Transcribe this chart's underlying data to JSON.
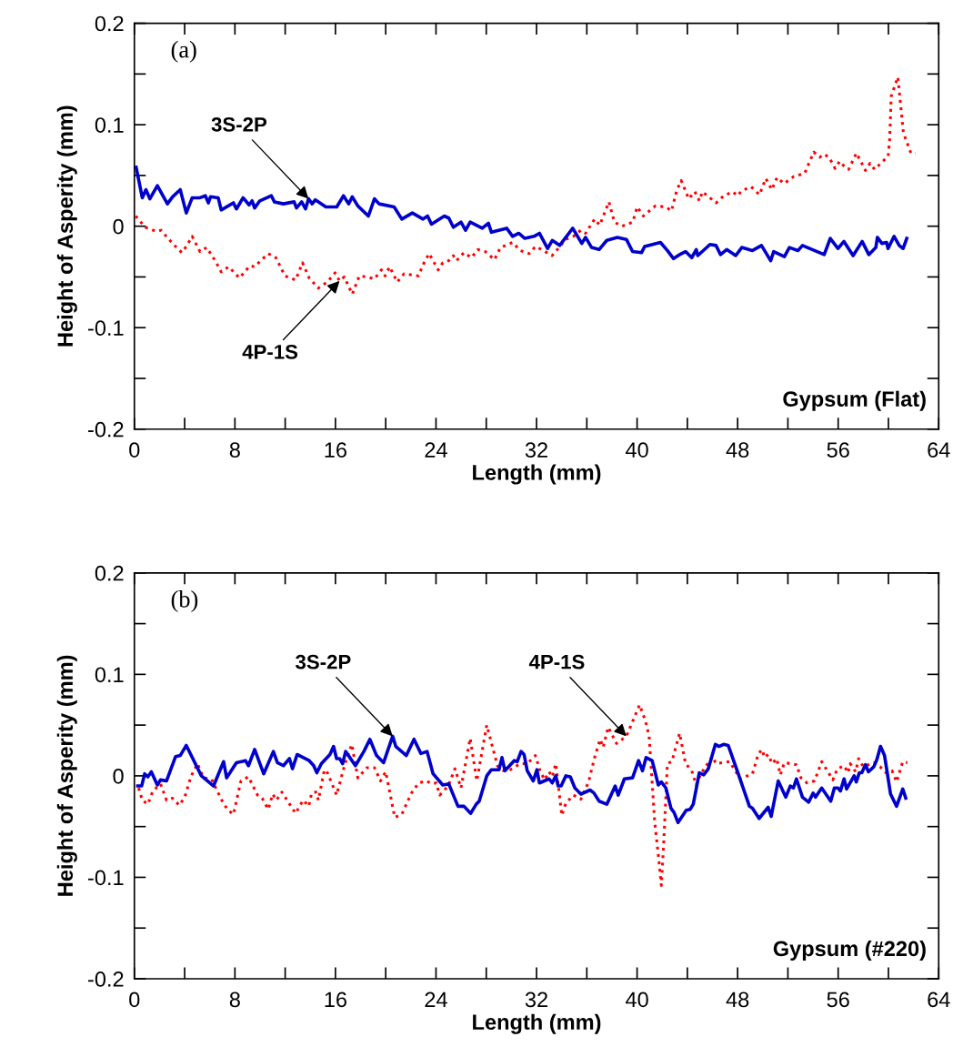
{
  "chart_data": [
    {
      "type": "line",
      "xlabel": "Length (mm)",
      "ylabel": "Height of Asperity (mm)",
      "xlim": [
        0,
        64
      ],
      "ylim": [
        -0.2,
        0.2
      ],
      "xticks": [
        0,
        {
          "value": 4,
          "label": null
        },
        8,
        {
          "value": 12,
          "label": null
        },
        16,
        {
          "value": 20,
          "label": null
        },
        24,
        {
          "value": 28,
          "label": null
        },
        32,
        {
          "value": 36,
          "label": null
        },
        40,
        {
          "value": 44,
          "label": null
        },
        48,
        {
          "value": 52,
          "label": null
        },
        56,
        {
          "value": 60,
          "label": null
        },
        64
      ],
      "yticks": [
        {
          "value": -0.2,
          "label": "-0.2"
        },
        {
          "value": -0.15,
          "label": null
        },
        {
          "value": -0.1,
          "label": "-0.1"
        },
        {
          "value": -0.05,
          "label": null
        },
        0,
        {
          "value": 0.05,
          "label": null
        },
        0.1,
        {
          "value": 0.15,
          "label": null
        },
        0.2
      ],
      "grid": false,
      "annotations": [
        "(a)",
        "Gypsum (Flat)",
        {
          "text": "3S-2P",
          "x": 13.86,
          "y": 0.027
        },
        {
          "text": "4P-1S",
          "x": 16.33,
          "y": -0.054
        }
      ],
      "series": [
        {
          "color": "#0000cc",
          "line_style": "solid",
          "x": [
            0.14,
            0.63,
            0.92,
            1.23,
            1.83,
            2.63,
            3.04,
            3.65,
            4.13,
            4.6,
            5.22,
            5.65,
            5.89,
            6.06,
            6.67,
            6.91,
            7.88,
            8.12,
            8.65,
            9.13,
            9.37,
            9.57,
            9.98,
            10.9,
            11.14,
            11.86,
            12.71,
            12.9,
            13.31,
            13.62,
            13.86,
            14.15,
            14.4,
            15.24,
            16.1,
            16.64,
            17.05,
            17.34,
            17.78,
            18.62,
            19.1,
            19.47,
            20.67,
            21.28,
            22.12,
            22.97,
            23.33,
            23.64,
            24.66,
            25.02,
            25.38,
            25.99,
            26.35,
            26.72,
            27.68,
            28.17,
            28.41,
            29.62,
            30.1,
            30.58,
            31.07,
            31.8,
            32.23,
            32.88,
            33.25,
            33.84,
            34.33,
            34.88,
            35.6,
            35.9,
            36.38,
            36.98,
            37.59,
            38.43,
            39.15,
            39.64,
            40.36,
            40.6,
            41.86,
            42.41,
            42.9,
            43.38,
            43.86,
            44.35,
            44.71,
            44.83,
            45.8,
            46.28,
            46.64,
            47.13,
            47.85,
            48.33,
            49.18,
            49.9,
            50.63,
            50.87,
            51.72,
            52.12,
            52.8,
            53.16,
            54.89,
            55.37,
            55.98,
            56.46,
            57.19,
            57.91,
            58.44,
            59.0,
            59.12,
            59.48,
            59.85,
            59.97,
            60.45,
            60.86,
            61.17,
            61.46
          ],
          "values": [
            0.058,
            0.028,
            0.036,
            0.027,
            0.04,
            0.022,
            0.029,
            0.036,
            0.013,
            0.028,
            0.028,
            0.03,
            0.023,
            0.029,
            0.028,
            0.016,
            0.023,
            0.017,
            0.028,
            0.021,
            0.025,
            0.018,
            0.025,
            0.03,
            0.024,
            0.022,
            0.024,
            0.018,
            0.024,
            0.017,
            0.027,
            0.022,
            0.026,
            0.019,
            0.019,
            0.03,
            0.022,
            0.029,
            0.02,
            0.01,
            0.027,
            0.022,
            0.019,
            0.007,
            0.013,
            0.007,
            0.01,
            0.002,
            0.01,
            0.008,
            -0.001,
            0.004,
            -0.004,
            0.004,
            -0.002,
            0.003,
            -0.006,
            -0.002,
            -0.01,
            -0.007,
            -0.012,
            -0.01,
            -0.007,
            -0.022,
            -0.014,
            -0.019,
            -0.011,
            -0.002,
            -0.017,
            -0.011,
            -0.021,
            -0.023,
            -0.014,
            -0.011,
            -0.013,
            -0.025,
            -0.026,
            -0.02,
            -0.016,
            -0.024,
            -0.032,
            -0.028,
            -0.025,
            -0.031,
            -0.023,
            -0.029,
            -0.018,
            -0.019,
            -0.028,
            -0.023,
            -0.029,
            -0.021,
            -0.024,
            -0.019,
            -0.034,
            -0.025,
            -0.03,
            -0.021,
            -0.024,
            -0.019,
            -0.028,
            -0.012,
            -0.022,
            -0.015,
            -0.029,
            -0.015,
            -0.028,
            -0.021,
            -0.011,
            -0.017,
            -0.016,
            -0.022,
            -0.01,
            -0.019,
            -0.022,
            -0.012
          ]
        },
        {
          "color": "#ff0000",
          "line_style": "dotted",
          "x": [
            0.1,
            0.87,
            1.72,
            2.12,
            3.04,
            3.77,
            4.13,
            4.6,
            5.22,
            5.75,
            6.43,
            6.91,
            7.51,
            8.36,
            9.2,
            9.57,
            10.05,
            10.65,
            11.26,
            11.98,
            12.83,
            13.38,
            13.91,
            14.64,
            15.36,
            15.97,
            16.33,
            16.7,
            17.34,
            17.9,
            18.5,
            19.1,
            19.66,
            19.95,
            20.31,
            20.92,
            21.45,
            22.61,
            22.97,
            23.45,
            24.18,
            24.54,
            25.02,
            25.38,
            25.63,
            26.23,
            26.83,
            27.32,
            27.92,
            28.65,
            29.13,
            30.1,
            30.7,
            31.43,
            31.91,
            32.4,
            33.24,
            33.72,
            34.32,
            34.93,
            35.53,
            35.9,
            36.62,
            37.03,
            37.76,
            38.19,
            38.8,
            39.65,
            40.01,
            40.49,
            41.46,
            42.3,
            42.74,
            43.15,
            43.51,
            44.11,
            44.6,
            44.96,
            45.2,
            46.29,
            46.9,
            47.62,
            47.98,
            48.34,
            49.07,
            49.74,
            50.24,
            50.72,
            51.14,
            51.7,
            52.47,
            53.33,
            54.06,
            54.54,
            54.86,
            55.27,
            55.75,
            56.12,
            56.48,
            56.84,
            57.45,
            58.17,
            58.53,
            58.9,
            59.98,
            60.1,
            60.22,
            60.75,
            61.19,
            61.79,
            62.15
          ],
          "values": [
            0.01,
            -0.001,
            -0.005,
            -0.004,
            -0.017,
            -0.026,
            -0.02,
            -0.01,
            -0.025,
            -0.021,
            -0.034,
            -0.045,
            -0.04,
            -0.051,
            -0.039,
            -0.04,
            -0.034,
            -0.027,
            -0.031,
            -0.049,
            -0.053,
            -0.036,
            -0.051,
            -0.061,
            -0.055,
            -0.046,
            -0.054,
            -0.05,
            -0.067,
            -0.049,
            -0.05,
            -0.052,
            -0.043,
            -0.049,
            -0.04,
            -0.055,
            -0.047,
            -0.049,
            -0.038,
            -0.027,
            -0.043,
            -0.036,
            -0.034,
            -0.029,
            -0.034,
            -0.026,
            -0.031,
            -0.023,
            -0.025,
            -0.033,
            -0.021,
            -0.016,
            -0.024,
            -0.027,
            -0.02,
            -0.023,
            -0.029,
            -0.022,
            -0.013,
            -0.01,
            -0.004,
            -0.007,
            0.007,
            0.001,
            0.024,
            0.004,
            0.0,
            0.004,
            0.019,
            0.01,
            0.02,
            0.019,
            0.015,
            0.035,
            0.045,
            0.027,
            0.034,
            0.025,
            0.034,
            0.023,
            0.03,
            0.034,
            0.03,
            0.035,
            0.039,
            0.031,
            0.047,
            0.036,
            0.048,
            0.042,
            0.049,
            0.052,
            0.073,
            0.068,
            0.071,
            0.068,
            0.057,
            0.064,
            0.059,
            0.056,
            0.072,
            0.055,
            0.062,
            0.056,
            0.069,
            0.086,
            0.128,
            0.147,
            0.092,
            0.072,
            0.072
          ]
        }
      ]
    },
    {
      "type": "line",
      "xlabel": "Length (mm)",
      "ylabel": "Height of Asperity (mm)",
      "xlim": [
        0,
        64
      ],
      "ylim": [
        -0.2,
        0.2
      ],
      "xticks": [
        0,
        {
          "value": 4,
          "label": null
        },
        8,
        {
          "value": 12,
          "label": null
        },
        16,
        {
          "value": 20,
          "label": null
        },
        24,
        {
          "value": 28,
          "label": null
        },
        32,
        {
          "value": 36,
          "label": null
        },
        40,
        {
          "value": 44,
          "label": null
        },
        48,
        {
          "value": 52,
          "label": null
        },
        56,
        {
          "value": 60,
          "label": null
        },
        64
      ],
      "yticks": [
        {
          "value": -0.2,
          "label": "-0.2"
        },
        {
          "value": -0.15,
          "label": null
        },
        {
          "value": -0.1,
          "label": "-0.1"
        },
        {
          "value": -0.05,
          "label": null
        },
        0,
        {
          "value": 0.05,
          "label": null
        },
        0.1,
        {
          "value": 0.15,
          "label": null
        },
        0.2
      ],
      "grid": false,
      "annotations": [
        "(b)",
        "Gypsum (#220)",
        {
          "text": "3S-2P",
          "x": 20.55,
          "y": 0.039
        },
        {
          "text": "4P-1S",
          "x": 39.15,
          "y": 0.039
        }
      ],
      "series": [
        {
          "color": "#0000cc",
          "line_style": "solid",
          "x": [
            0.27,
            0.58,
            0.82,
            1.07,
            1.35,
            1.83,
            2.08,
            2.56,
            3.28,
            3.65,
            4.13,
            5.33,
            6.3,
            7.1,
            7.34,
            8.12,
            8.84,
            9.08,
            9.57,
            10.29,
            11.06,
            11.38,
            11.86,
            12.34,
            12.58,
            12.95,
            13.91,
            14.27,
            14.52,
            14.88,
            15.56,
            15.85,
            16.09,
            16.33,
            16.57,
            16.81,
            17.59,
            18.26,
            18.74,
            19.27,
            19.83,
            20.55,
            20.8,
            21.64,
            22.25,
            22.8,
            23.29,
            23.77,
            24.54,
            25.02,
            25.75,
            26.23,
            26.76,
            27.2,
            27.44,
            28.04,
            28.41,
            29.01,
            29.25,
            29.49,
            30.22,
            30.46,
            30.77,
            31.01,
            31.26,
            31.74,
            32.03,
            32.23,
            33.0,
            33.25,
            33.53,
            33.72,
            33.96,
            34.33,
            34.69,
            35.05,
            35.53,
            36.26,
            36.57,
            36.98,
            37.59,
            38.26,
            38.5,
            38.99,
            39.64,
            40.12,
            40.43,
            40.72,
            41.2,
            41.69,
            41.93,
            42.29,
            42.7,
            42.94,
            43.26,
            43.91,
            44.22,
            44.47,
            44.95,
            45.31,
            45.67,
            46.23,
            46.52,
            46.88,
            47.25,
            47.97,
            48.94,
            49.18,
            49.71,
            50.43,
            50.67,
            51.23,
            51.83,
            52.19,
            52.44,
            52.68,
            53.16,
            53.65,
            54.01,
            54.2,
            54.69,
            55.41,
            55.7,
            55.99,
            56.18,
            56.47,
            56.67,
            57.27,
            57.44,
            57.68,
            57.88,
            58.17,
            58.41,
            58.84,
            59.08,
            59.37,
            59.69,
            60.17,
            60.65,
            61.14,
            61.38
          ],
          "values": [
            -0.01,
            -0.01,
            0.002,
            -0.001,
            0.004,
            -0.009,
            -0.004,
            -0.005,
            0.019,
            0.02,
            0.03,
            0.0,
            -0.01,
            0.014,
            -0.002,
            0.013,
            0.015,
            0.01,
            0.026,
            0.002,
            0.024,
            0.013,
            0.01,
            0.017,
            0.007,
            0.021,
            0.015,
            0.01,
            0.003,
            0.012,
            0.021,
            0.029,
            0.017,
            0.017,
            0.012,
            0.024,
            0.01,
            0.024,
            0.036,
            0.02,
            0.013,
            0.039,
            0.029,
            0.02,
            0.036,
            0.022,
            0.024,
            0.002,
            -0.009,
            -0.008,
            -0.03,
            -0.03,
            -0.037,
            -0.028,
            -0.025,
            0.0,
            0.006,
            0.006,
            0.018,
            0.005,
            0.015,
            0.014,
            0.024,
            0.021,
            0.005,
            -0.005,
            0.006,
            -0.007,
            -0.003,
            -0.007,
            0.0,
            -0.01,
            -0.01,
            0.0,
            -0.001,
            -0.012,
            -0.018,
            -0.014,
            -0.017,
            -0.025,
            -0.028,
            -0.01,
            -0.019,
            -0.003,
            -0.002,
            0.015,
            0.005,
            0.018,
            0.015,
            -0.009,
            -0.006,
            -0.012,
            -0.032,
            -0.036,
            -0.046,
            -0.034,
            -0.033,
            -0.028,
            0.003,
            0.001,
            0.007,
            0.031,
            0.029,
            0.031,
            0.03,
            0.005,
            -0.03,
            -0.032,
            -0.042,
            -0.031,
            -0.04,
            -0.005,
            -0.021,
            -0.01,
            -0.012,
            -0.003,
            -0.021,
            -0.026,
            -0.017,
            -0.021,
            -0.012,
            -0.025,
            -0.012,
            -0.012,
            -0.015,
            -0.003,
            -0.013,
            0.0,
            -0.006,
            0.003,
            0.003,
            0.011,
            0.004,
            0.009,
            0.016,
            0.029,
            0.02,
            -0.018,
            -0.03,
            -0.013,
            -0.022
          ]
        },
        {
          "color": "#ff0000",
          "line_style": "dotted",
          "x": [
            0.34,
            0.63,
            1.07,
            1.47,
            2.08,
            2.56,
            3.04,
            3.57,
            4.01,
            4.49,
            5.02,
            5.51,
            6.13,
            6.91,
            7.39,
            7.88,
            8.48,
            9.08,
            9.8,
            10.17,
            10.65,
            11.01,
            11.3,
            11.74,
            12.46,
            12.83,
            13.43,
            13.87,
            14.11,
            14.45,
            14.64,
            15.12,
            15.36,
            16.09,
            16.76,
            17.3,
            17.78,
            18.5,
            19.1,
            19.59,
            20.0,
            20.72,
            21.28,
            22.0,
            22.61,
            23.21,
            23.7,
            24.01,
            24.3,
            24.97,
            25.51,
            25.99,
            26.72,
            27.25,
            28.04,
            28.89,
            29.37,
            29.9,
            30.7,
            31.26,
            31.91,
            32.28,
            32.64,
            33.0,
            33.25,
            33.53,
            34.01,
            34.33,
            34.93,
            35.53,
            36.14,
            36.62,
            37.06,
            37.3,
            37.7,
            38.36,
            39.15,
            40.2,
            40.67,
            40.96,
            41.4,
            41.74,
            41.93,
            42.12,
            42.41,
            42.77,
            43.38,
            43.86,
            44.35,
            44.71,
            45.07,
            45.99,
            46.28,
            47.37,
            48.21,
            49.18,
            49.66,
            49.95,
            50.14,
            50.43,
            50.75,
            51.11,
            51.4,
            51.72,
            52.68,
            53.04,
            53.53,
            54.13,
            54.69,
            55.58,
            55.94,
            56.47,
            56.79,
            56.96,
            57.39,
            57.63,
            58.0,
            58.84,
            59.33,
            59.81,
            60.29,
            60.65,
            61.14,
            61.5
          ],
          "values": [
            -0.012,
            -0.024,
            -0.028,
            -0.015,
            -0.008,
            -0.024,
            -0.022,
            -0.029,
            -0.021,
            -0.001,
            0.012,
            -0.002,
            -0.003,
            -0.023,
            -0.033,
            -0.038,
            -0.005,
            -0.001,
            -0.019,
            -0.022,
            -0.033,
            -0.018,
            -0.024,
            -0.016,
            -0.03,
            -0.037,
            -0.024,
            -0.03,
            -0.017,
            -0.016,
            -0.024,
            0.006,
            0.003,
            -0.019,
            0.012,
            0.031,
            -0.002,
            0.008,
            0.008,
            -0.005,
            0.004,
            -0.041,
            -0.038,
            -0.018,
            -0.007,
            -0.005,
            -0.008,
            -0.007,
            -0.019,
            -0.01,
            0.007,
            -0.012,
            0.037,
            -0.005,
            0.05,
            0.01,
            0.005,
            0.006,
            0.012,
            0.012,
            0.02,
            0.005,
            -0.004,
            0.004,
            -0.001,
            0.012,
            -0.039,
            -0.027,
            -0.019,
            -0.023,
            -0.006,
            0.018,
            0.036,
            0.028,
            0.048,
            0.032,
            0.039,
            0.07,
            0.054,
            0.039,
            -0.045,
            -0.084,
            -0.108,
            -0.066,
            0.012,
            0.014,
            0.042,
            0.012,
            0.005,
            -0.009,
            0.002,
            0.019,
            0.012,
            0.014,
            -0.003,
            0.002,
            0.022,
            0.026,
            0.018,
            0.021,
            0.012,
            0.017,
            0.001,
            0.013,
            0.011,
            -0.002,
            -0.007,
            -0.005,
            0.014,
            -0.004,
            0.007,
            0.01,
            0.003,
            0.012,
            0.004,
            0.017,
            0.009,
            0.013,
            0.009,
            0.003,
            0.005,
            -0.006,
            0.014,
            0.013
          ]
        }
      ]
    }
  ]
}
